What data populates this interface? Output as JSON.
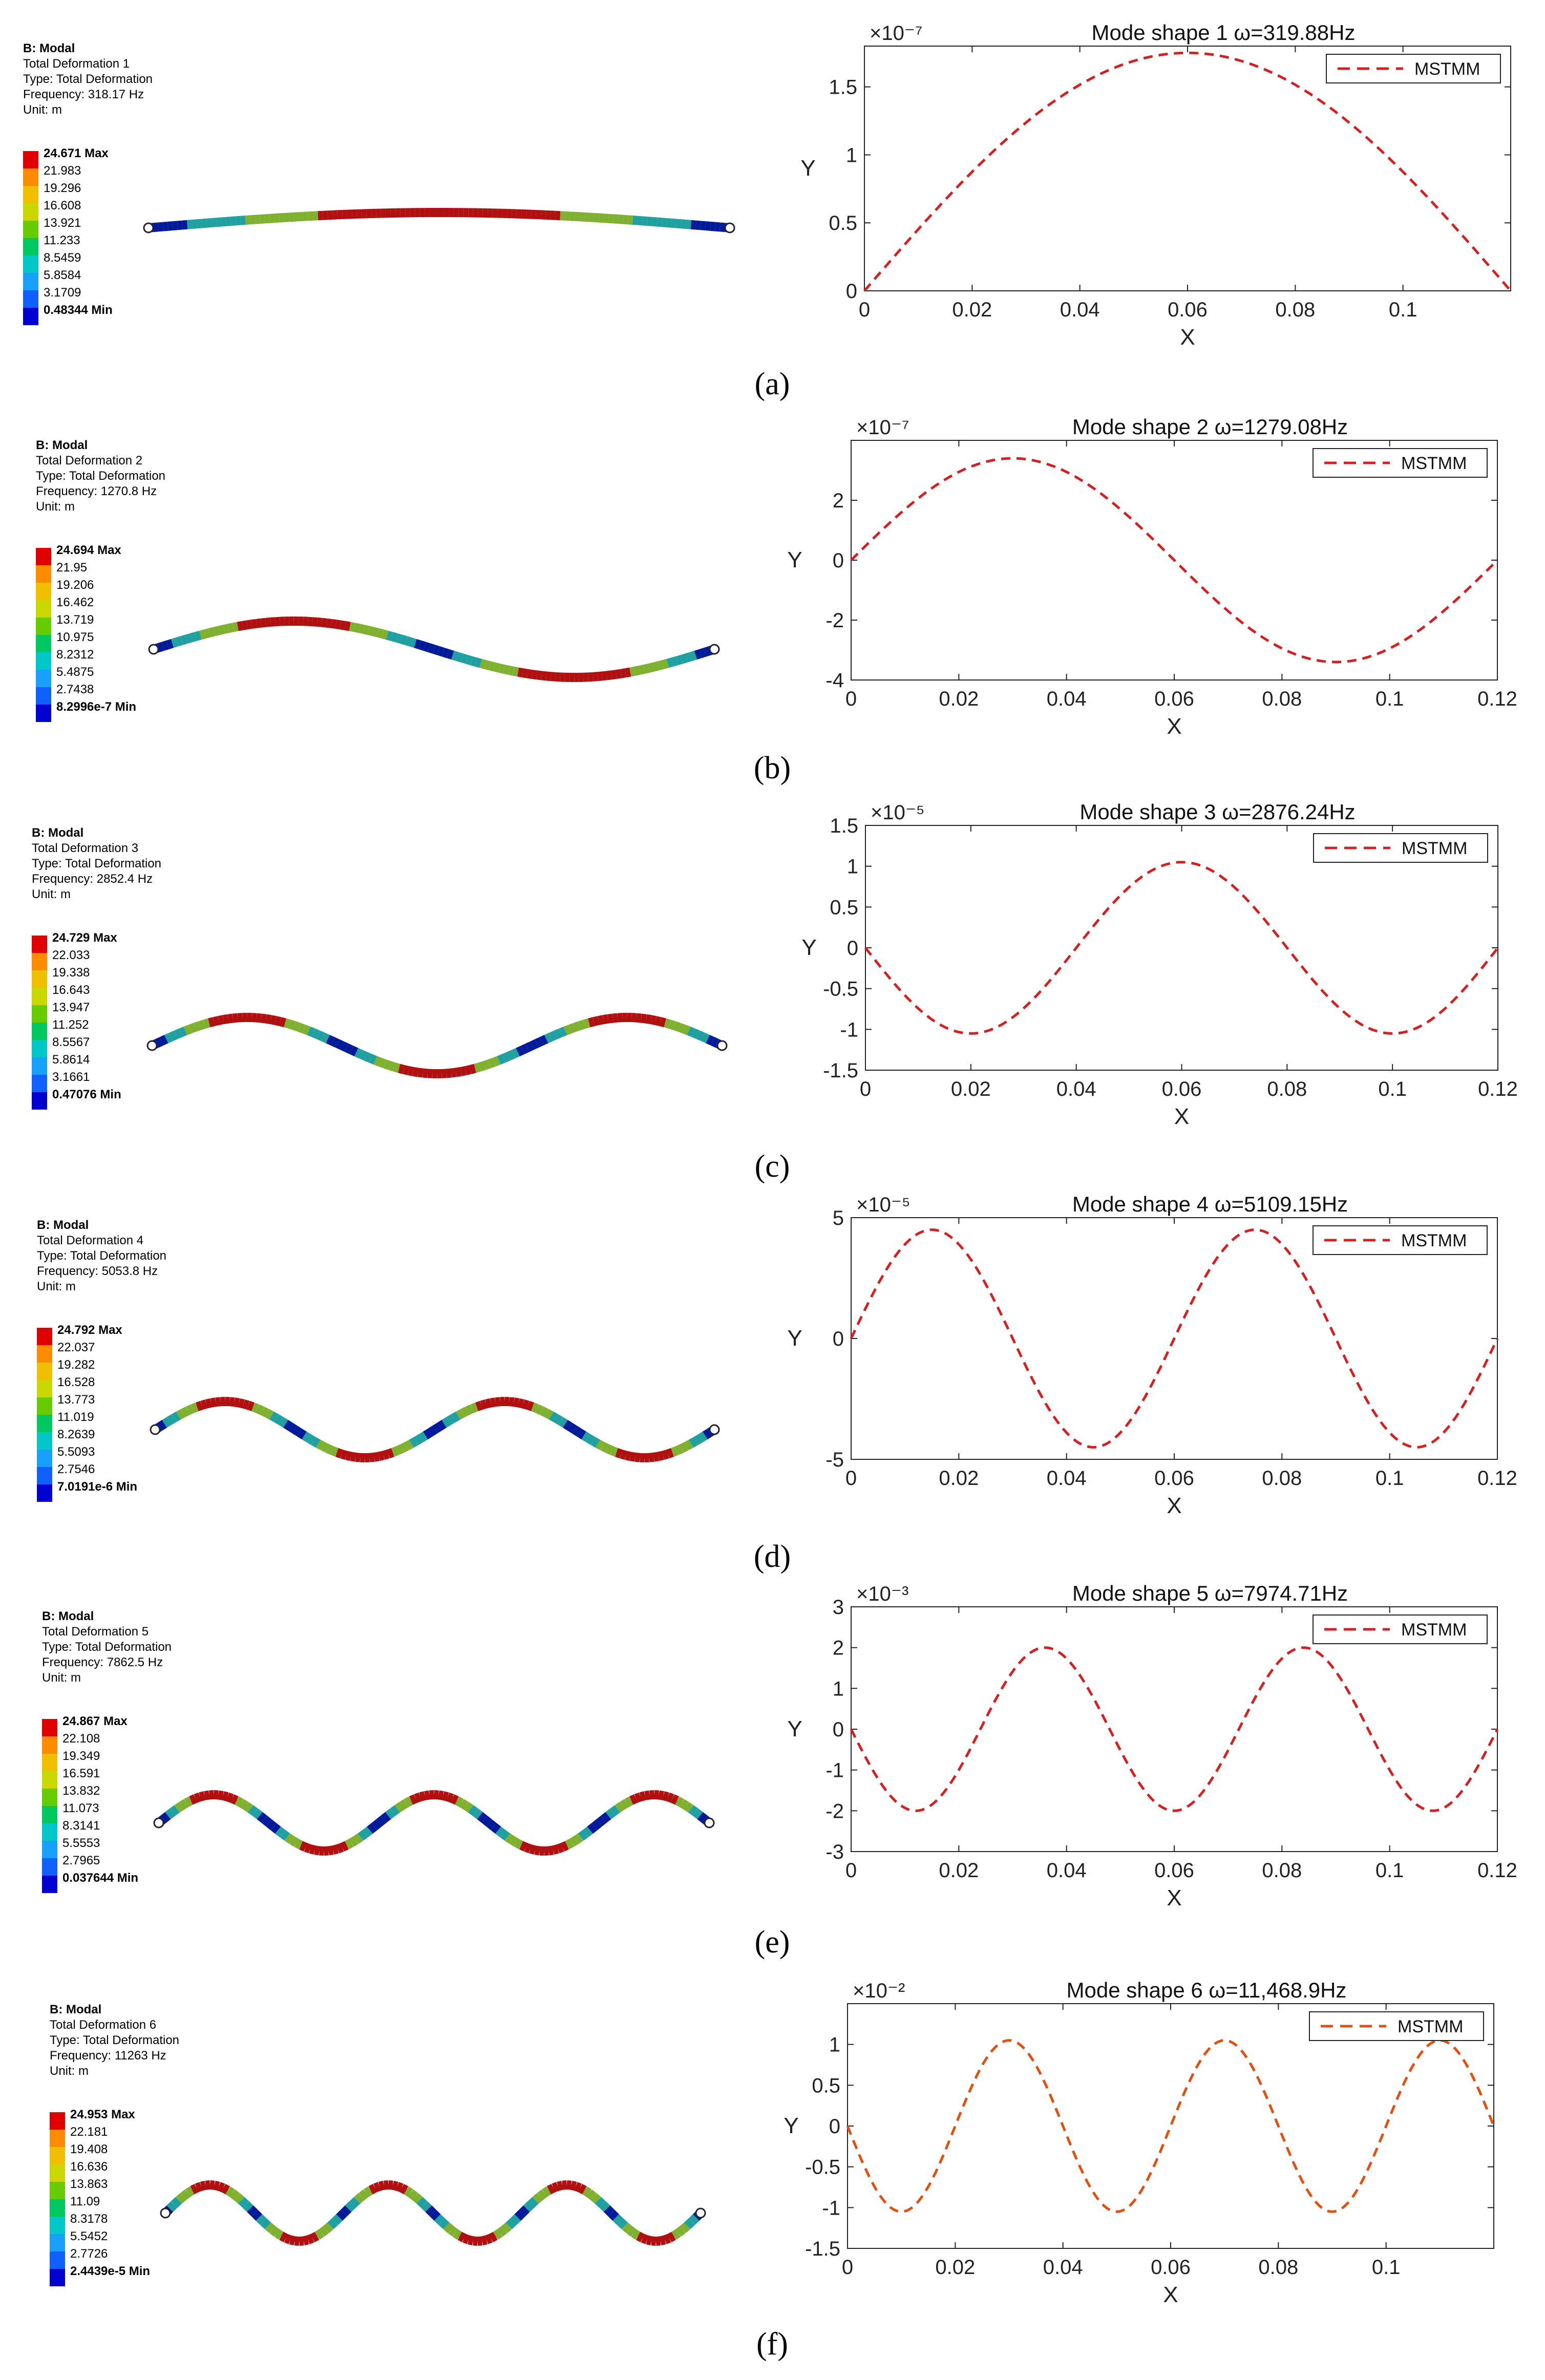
{
  "figure": {
    "panels": [
      {
        "label": "(a)",
        "fe_info": [
          "B: Modal",
          "Total Deformation 1",
          "Type: Total Deformation",
          "Frequency: 318.17 Hz",
          "Unit: m"
        ],
        "legend_values": [
          "24.671 Max",
          "21.983",
          "19.296",
          "16.608",
          "13.921",
          "11.233",
          "8.5459",
          "5.8584",
          "3.1709",
          "0.48344 Min"
        ],
        "mode": 1,
        "half_waves": 1
      },
      {
        "label": "(b)",
        "fe_info": [
          "B: Modal",
          "Total Deformation 2",
          "Type: Total Deformation",
          "Frequency: 1270.8 Hz",
          "Unit: m"
        ],
        "legend_values": [
          "24.694 Max",
          "21.95",
          "19.206",
          "16.462",
          "13.719",
          "10.975",
          "8.2312",
          "5.4875",
          "2.7438",
          "8.2996e-7 Min"
        ],
        "mode": 2,
        "half_waves": 2
      },
      {
        "label": "(c)",
        "fe_info": [
          "B: Modal",
          "Total Deformation 3",
          "Type: Total Deformation",
          "Frequency: 2852.4 Hz",
          "Unit: m"
        ],
        "legend_values": [
          "24.729 Max",
          "22.033",
          "19.338",
          "16.643",
          "13.947",
          "11.252",
          "8.5567",
          "5.8614",
          "3.1661",
          "0.47076 Min"
        ],
        "mode": 3,
        "half_waves": 3
      },
      {
        "label": "(d)",
        "fe_info": [
          "B: Modal",
          "Total Deformation 4",
          "Type: Total Deformation",
          "Frequency: 5053.8 Hz",
          "Unit: m"
        ],
        "legend_values": [
          "24.792 Max",
          "22.037",
          "19.282",
          "16.528",
          "13.773",
          "11.019",
          "8.2639",
          "5.5093",
          "2.7546",
          "7.0191e-6 Min"
        ],
        "mode": 4,
        "half_waves": 4
      },
      {
        "label": "(e)",
        "fe_info": [
          "B: Modal",
          "Total Deformation 5",
          "Type: Total Deformation",
          "Frequency: 7862.5 Hz",
          "Unit: m"
        ],
        "legend_values": [
          "24.867 Max",
          "22.108",
          "19.349",
          "16.591",
          "13.832",
          "11.073",
          "8.3141",
          "5.5553",
          "2.7965",
          "0.037644 Min"
        ],
        "mode": 5,
        "half_waves": 5
      },
      {
        "label": "(f)",
        "fe_info": [
          "B: Modal",
          "Total Deformation 6",
          "Type: Total Deformation",
          "Frequency: 11263 Hz",
          "Unit: m"
        ],
        "legend_values": [
          "24.953 Max",
          "22.181",
          "19.408",
          "16.636",
          "13.863",
          "11.09",
          "8.3178",
          "5.5452",
          "2.7726",
          "2.4439e-5 Min"
        ],
        "mode": 6,
        "half_waves": 6
      }
    ]
  },
  "colors": {
    "legend_bands": [
      "#e00000",
      "#ff8c00",
      "#f0c000",
      "#c8d800",
      "#66cc00",
      "#00c860",
      "#00c8c8",
      "#18a0ff",
      "#1060ff",
      "#0000d0"
    ],
    "curve": "#d42020",
    "curve_f": "#e05010",
    "axis": "#222222",
    "beam_high": "#b01010",
    "beam_mid": "#80b030",
    "beam_low": "#20a0a0",
    "beam_node": "#001a99"
  },
  "chart_data": [
    {
      "type": "line",
      "title": "Mode shape 1    ω=319.88Hz",
      "xlabel": "X",
      "ylabel": "Y",
      "exponent": "×10⁻⁷",
      "xlim": [
        0,
        0.12
      ],
      "ylim": [
        0,
        1.8
      ],
      "xticks": [
        0,
        0.02,
        0.04,
        0.06,
        0.08,
        0.1
      ],
      "xtick_labels": [
        "0",
        "0.02",
        "0.04",
        "0.06",
        "0.08",
        "0.1"
      ],
      "yticks": [
        0,
        0.5,
        1,
        1.5
      ],
      "ytick_labels": [
        "0",
        "0.5",
        "1",
        "1.5"
      ],
      "series": [
        {
          "name": "MSTMM",
          "amplitude": 1.75,
          "half_waves": 1,
          "length": 0.12
        }
      ]
    },
    {
      "type": "line",
      "title": "Mode shape 2    ω=1279.08Hz",
      "xlabel": "X",
      "ylabel": "Y",
      "exponent": "×10⁻⁷",
      "xlim": [
        0,
        0.12
      ],
      "ylim": [
        -4,
        4
      ],
      "xticks": [
        0,
        0.02,
        0.04,
        0.06,
        0.08,
        0.1,
        0.12
      ],
      "xtick_labels": [
        "0",
        "0.02",
        "0.04",
        "0.06",
        "0.08",
        "0.1",
        "0.12"
      ],
      "yticks": [
        -4,
        -2,
        0,
        2
      ],
      "ytick_labels": [
        "-4",
        "-2",
        "0",
        "2"
      ],
      "series": [
        {
          "name": "MSTMM",
          "amplitude": 3.4,
          "half_waves": 2,
          "length": 0.12
        }
      ]
    },
    {
      "type": "line",
      "title": "Mode shape 3    ω=2876.24Hz",
      "xlabel": "X",
      "ylabel": "Y",
      "exponent": "×10⁻⁵",
      "xlim": [
        0,
        0.12
      ],
      "ylim": [
        -1.5,
        1.5
      ],
      "xticks": [
        0,
        0.02,
        0.04,
        0.06,
        0.08,
        0.1,
        0.12
      ],
      "xtick_labels": [
        "0",
        "0.02",
        "0.04",
        "0.06",
        "0.08",
        "0.1",
        "0.12"
      ],
      "yticks": [
        -1.5,
        -1,
        -0.5,
        0,
        0.5,
        1,
        1.5
      ],
      "ytick_labels": [
        "-1.5",
        "-1",
        "-0.5",
        "0",
        "0.5",
        "1",
        "1.5"
      ],
      "series": [
        {
          "name": "MSTMM",
          "amplitude": -1.05,
          "half_waves": 3,
          "length": 0.12
        }
      ]
    },
    {
      "type": "line",
      "title": "Mode shape 4    ω=5109.15Hz",
      "xlabel": "X",
      "ylabel": "Y",
      "exponent": "×10⁻⁵",
      "xlim": [
        0,
        0.12
      ],
      "ylim": [
        -5,
        5
      ],
      "xticks": [
        0,
        0.02,
        0.04,
        0.06,
        0.08,
        0.1,
        0.12
      ],
      "xtick_labels": [
        "0",
        "0.02",
        "0.04",
        "0.06",
        "0.08",
        "0.1",
        "0.12"
      ],
      "yticks": [
        -5,
        0,
        5
      ],
      "ytick_labels": [
        "-5",
        "0",
        "5"
      ],
      "series": [
        {
          "name": "MSTMM",
          "amplitude": 4.5,
          "half_waves": 4,
          "length": 0.12
        }
      ]
    },
    {
      "type": "line",
      "title": "Mode shape 5    ω=7974.71Hz",
      "xlabel": "X",
      "ylabel": "Y",
      "exponent": "×10⁻³",
      "xlim": [
        0,
        0.12
      ],
      "ylim": [
        -3,
        3
      ],
      "xticks": [
        0,
        0.02,
        0.04,
        0.06,
        0.08,
        0.1,
        0.12
      ],
      "xtick_labels": [
        "0",
        "0.02",
        "0.04",
        "0.06",
        "0.08",
        "0.1",
        "0.12"
      ],
      "yticks": [
        -3,
        -2,
        -1,
        0,
        1,
        2,
        3
      ],
      "ytick_labels": [
        "-3",
        "-2",
        "-1",
        "0",
        "1",
        "2",
        "3"
      ],
      "series": [
        {
          "name": "MSTMM",
          "amplitude": -2.0,
          "half_waves": 5,
          "length": 0.12
        }
      ]
    },
    {
      "type": "line",
      "title": "Mode shape 6 ω=11,468.9Hz",
      "xlabel": "X",
      "ylabel": "Y",
      "exponent": "×10⁻²",
      "xlim": [
        0,
        0.12
      ],
      "ylim": [
        -1.5,
        1.5
      ],
      "xticks": [
        0,
        0.02,
        0.04,
        0.06,
        0.08,
        0.1
      ],
      "xtick_labels": [
        "0",
        "0.02",
        "0.04",
        "0.06",
        "0.08",
        "0.1"
      ],
      "yticks": [
        -1.5,
        -1,
        -0.5,
        0,
        0.5,
        1
      ],
      "ytick_labels": [
        "-1.5",
        "-1",
        "-0.5",
        "0",
        "0.5",
        "1"
      ],
      "series": [
        {
          "name": "MSTMM",
          "amplitude": -1.05,
          "half_waves": 6,
          "length": 0.12
        }
      ]
    }
  ]
}
